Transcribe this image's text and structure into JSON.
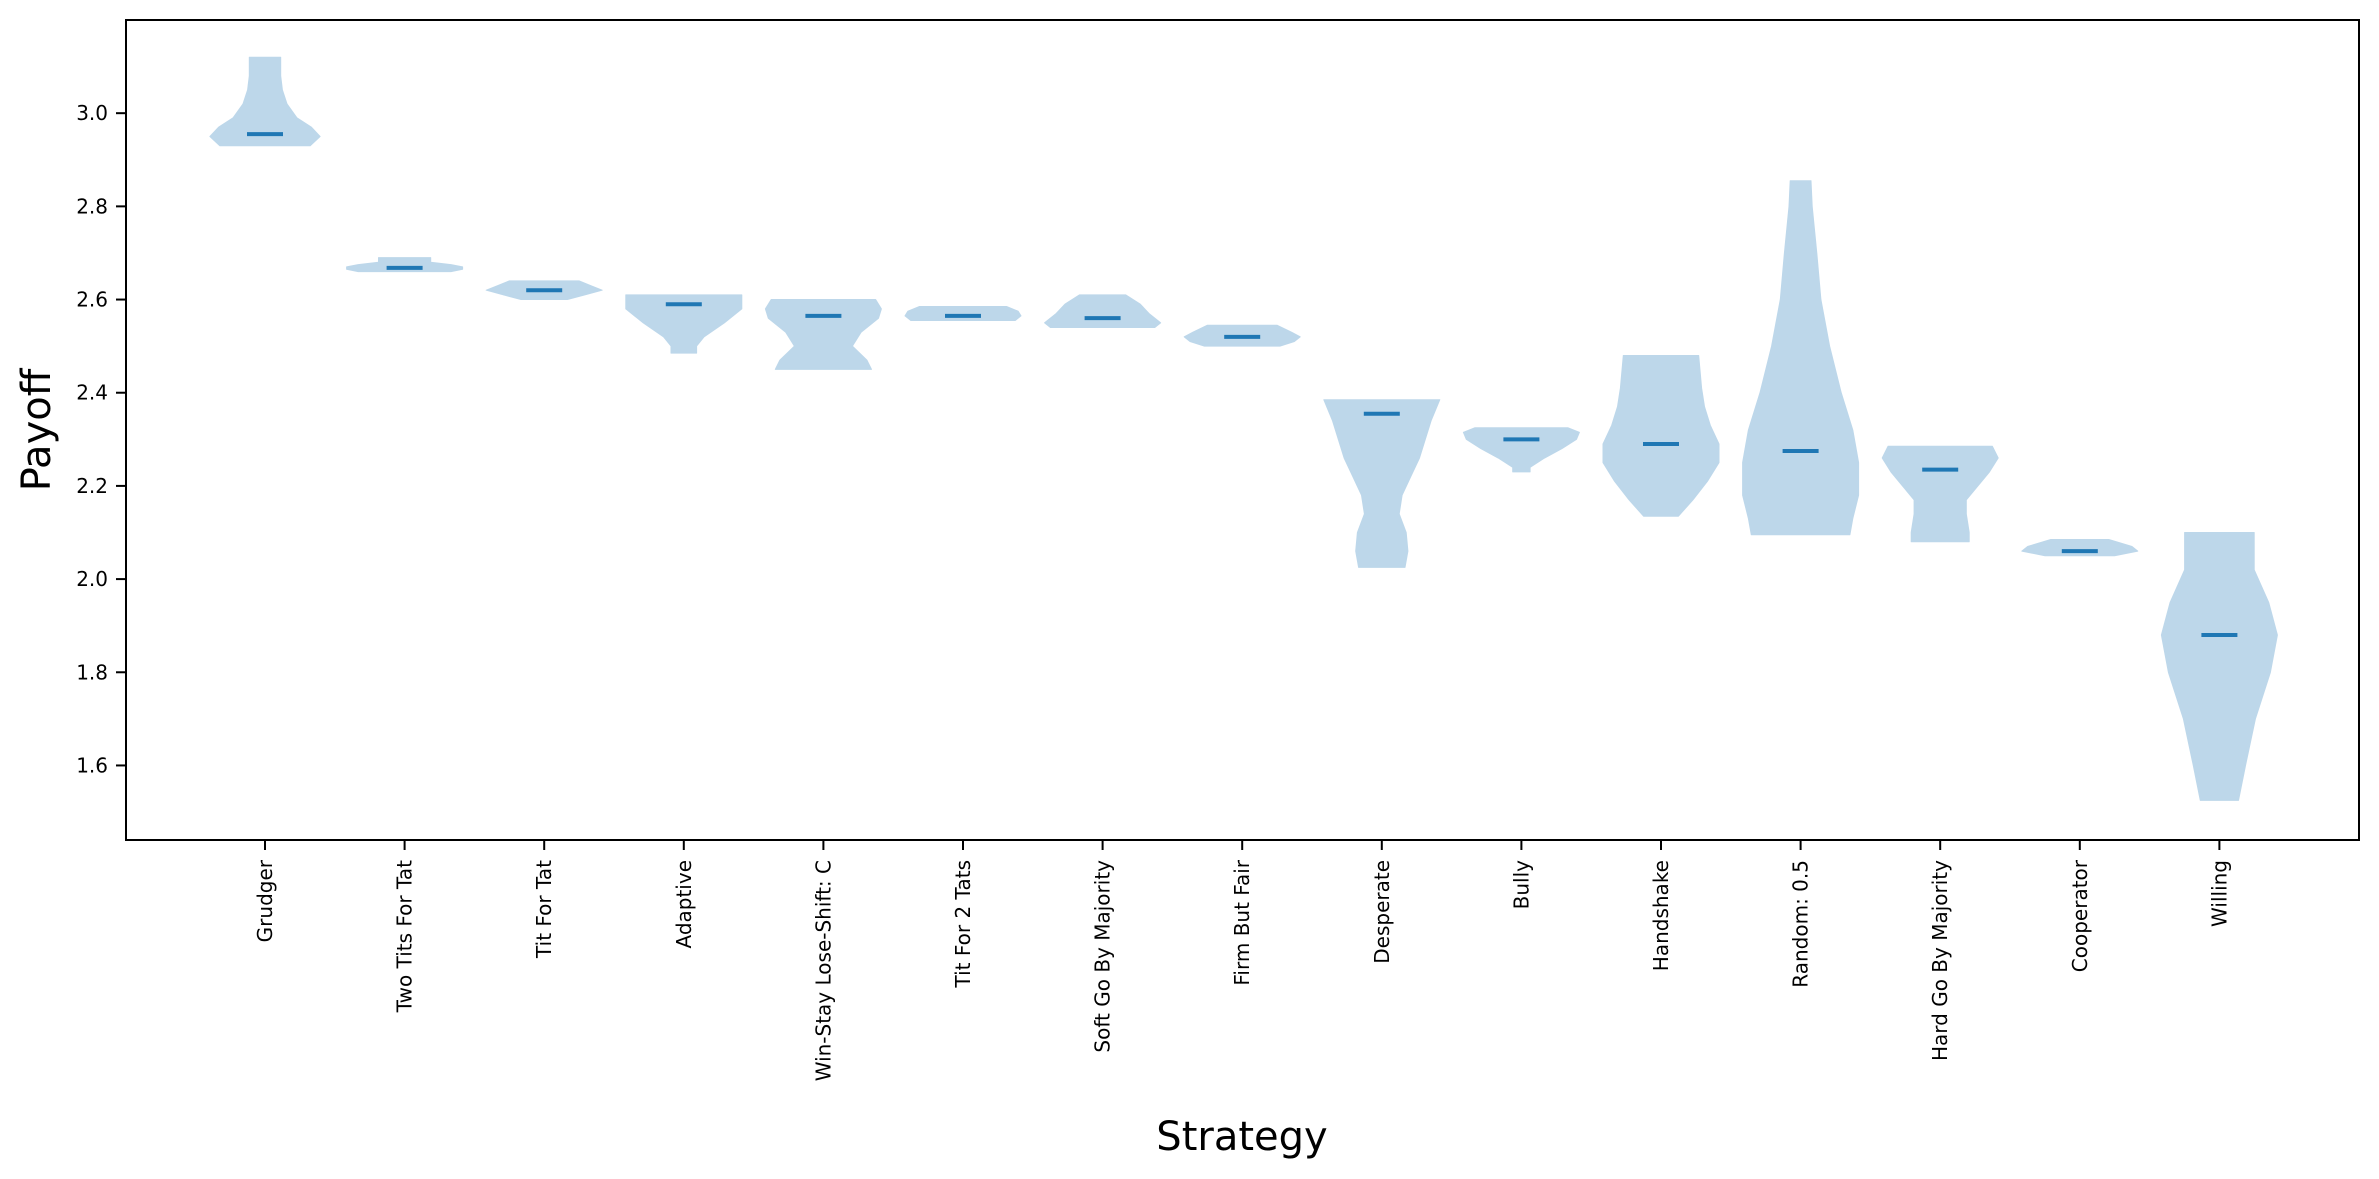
{
  "chart_data": {
    "type": "violin",
    "xlabel": "Strategy",
    "ylabel": "Payoff",
    "ylim": [
      1.44,
      3.2
    ],
    "yticks": [
      1.6,
      1.8,
      2.0,
      2.2,
      2.4,
      2.6,
      2.8,
      3.0
    ],
    "ytick_labels": [
      "1.6",
      "1.8",
      "2.0",
      "2.2",
      "2.4",
      "2.6",
      "2.8",
      "3.0"
    ],
    "grid": false,
    "colors": {
      "body": "#bdd7ea",
      "median": "#1f77b4",
      "axis": "#000000"
    },
    "categories": [
      "Grudger",
      "Two Tits For Tat",
      "Tit For Tat",
      "Adaptive",
      "Win-Stay Lose-Shift: C",
      "Tit For 2 Tats",
      "Soft Go By Majority",
      "Firm But Fair",
      "Desperate",
      "Bully",
      "Handshake",
      "Random: 0.5",
      "Hard Go By Majority",
      "Cooperator",
      "Willing"
    ],
    "violins": [
      {
        "min": 2.93,
        "max": 3.12,
        "median": 2.955,
        "profile": [
          [
            2.93,
            0.78
          ],
          [
            2.95,
            0.95
          ],
          [
            2.97,
            0.8
          ],
          [
            2.99,
            0.55
          ],
          [
            3.02,
            0.38
          ],
          [
            3.05,
            0.3
          ],
          [
            3.08,
            0.27
          ],
          [
            3.12,
            0.27
          ]
        ]
      },
      {
        "min": 2.66,
        "max": 2.69,
        "median": 2.668,
        "profile": [
          [
            2.66,
            0.8
          ],
          [
            2.665,
            1.0
          ],
          [
            2.67,
            1.0
          ],
          [
            2.675,
            0.8
          ],
          [
            2.68,
            0.45
          ],
          [
            2.69,
            0.45
          ]
        ]
      },
      {
        "min": 2.6,
        "max": 2.64,
        "median": 2.62,
        "profile": [
          [
            2.6,
            0.4
          ],
          [
            2.61,
            0.7
          ],
          [
            2.62,
            1.0
          ],
          [
            2.63,
            0.8
          ],
          [
            2.64,
            0.6
          ]
        ]
      },
      {
        "min": 2.485,
        "max": 2.61,
        "median": 2.59,
        "profile": [
          [
            2.485,
            0.22
          ],
          [
            2.5,
            0.22
          ],
          [
            2.52,
            0.35
          ],
          [
            2.55,
            0.7
          ],
          [
            2.58,
            1.0
          ],
          [
            2.6,
            1.0
          ],
          [
            2.61,
            1.0
          ]
        ]
      },
      {
        "min": 2.45,
        "max": 2.6,
        "median": 2.565,
        "profile": [
          [
            2.45,
            0.83
          ],
          [
            2.47,
            0.75
          ],
          [
            2.5,
            0.5
          ],
          [
            2.53,
            0.65
          ],
          [
            2.56,
            0.95
          ],
          [
            2.58,
            1.0
          ],
          [
            2.6,
            0.9
          ]
        ]
      },
      {
        "min": 2.555,
        "max": 2.585,
        "median": 2.565,
        "profile": [
          [
            2.555,
            0.9
          ],
          [
            2.565,
            1.0
          ],
          [
            2.575,
            0.95
          ],
          [
            2.585,
            0.75
          ]
        ]
      },
      {
        "min": 2.54,
        "max": 2.61,
        "median": 2.56,
        "profile": [
          [
            2.54,
            0.9
          ],
          [
            2.55,
            1.0
          ],
          [
            2.57,
            0.8
          ],
          [
            2.59,
            0.65
          ],
          [
            2.61,
            0.4
          ]
        ]
      },
      {
        "min": 2.5,
        "max": 2.545,
        "median": 2.52,
        "profile": [
          [
            2.5,
            0.65
          ],
          [
            2.51,
            0.9
          ],
          [
            2.52,
            1.0
          ],
          [
            2.53,
            0.85
          ],
          [
            2.545,
            0.6
          ]
        ]
      },
      {
        "min": 2.025,
        "max": 2.385,
        "median": 2.355,
        "profile": [
          [
            2.025,
            0.4
          ],
          [
            2.06,
            0.45
          ],
          [
            2.1,
            0.42
          ],
          [
            2.14,
            0.3
          ],
          [
            2.18,
            0.35
          ],
          [
            2.22,
            0.5
          ],
          [
            2.26,
            0.65
          ],
          [
            2.3,
            0.75
          ],
          [
            2.34,
            0.85
          ],
          [
            2.385,
            1.0
          ]
        ]
      },
      {
        "min": 2.23,
        "max": 2.325,
        "median": 2.3,
        "profile": [
          [
            2.23,
            0.15
          ],
          [
            2.24,
            0.15
          ],
          [
            2.26,
            0.4
          ],
          [
            2.28,
            0.7
          ],
          [
            2.3,
            0.95
          ],
          [
            2.315,
            1.0
          ],
          [
            2.325,
            0.8
          ]
        ]
      },
      {
        "min": 2.135,
        "max": 2.48,
        "median": 2.29,
        "profile": [
          [
            2.135,
            0.3
          ],
          [
            2.17,
            0.55
          ],
          [
            2.21,
            0.8
          ],
          [
            2.25,
            1.0
          ],
          [
            2.29,
            1.0
          ],
          [
            2.33,
            0.85
          ],
          [
            2.37,
            0.75
          ],
          [
            2.41,
            0.7
          ],
          [
            2.48,
            0.65
          ]
        ]
      },
      {
        "min": 2.095,
        "max": 2.855,
        "median": 2.275,
        "profile": [
          [
            2.095,
            0.85
          ],
          [
            2.13,
            0.9
          ],
          [
            2.18,
            1.0
          ],
          [
            2.25,
            1.0
          ],
          [
            2.32,
            0.9
          ],
          [
            2.4,
            0.7
          ],
          [
            2.5,
            0.5
          ],
          [
            2.6,
            0.35
          ],
          [
            2.7,
            0.28
          ],
          [
            2.8,
            0.2
          ],
          [
            2.855,
            0.18
          ]
        ]
      },
      {
        "min": 2.08,
        "max": 2.285,
        "median": 2.235,
        "profile": [
          [
            2.08,
            0.5
          ],
          [
            2.1,
            0.5
          ],
          [
            2.14,
            0.45
          ],
          [
            2.17,
            0.45
          ],
          [
            2.2,
            0.65
          ],
          [
            2.23,
            0.85
          ],
          [
            2.26,
            1.0
          ],
          [
            2.285,
            0.9
          ]
        ]
      },
      {
        "min": 2.05,
        "max": 2.085,
        "median": 2.06,
        "profile": [
          [
            2.05,
            0.6
          ],
          [
            2.06,
            1.0
          ],
          [
            2.07,
            0.9
          ],
          [
            2.085,
            0.5
          ]
        ]
      },
      {
        "min": 1.525,
        "max": 2.1,
        "median": 1.88,
        "profile": [
          [
            1.525,
            0.33
          ],
          [
            1.6,
            0.45
          ],
          [
            1.7,
            0.62
          ],
          [
            1.8,
            0.88
          ],
          [
            1.88,
            1.0
          ],
          [
            1.95,
            0.85
          ],
          [
            2.02,
            0.6
          ],
          [
            2.1,
            0.6
          ]
        ]
      }
    ]
  }
}
